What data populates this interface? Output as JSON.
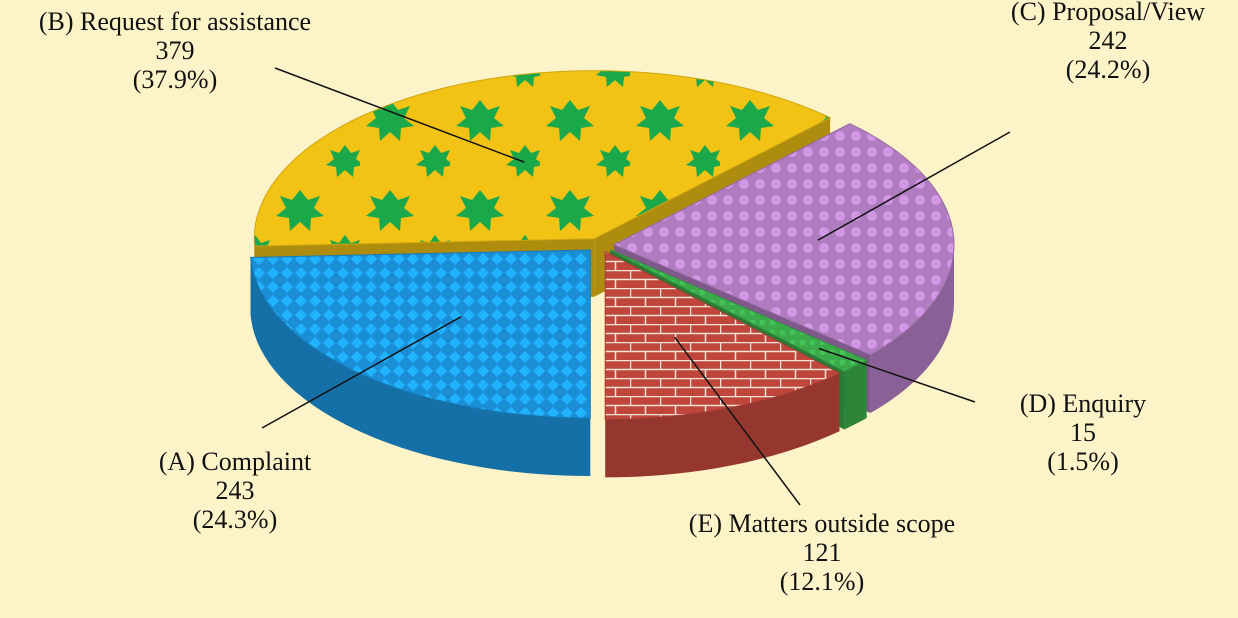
{
  "chart_data": {
    "type": "pie3d",
    "categories": [
      "(A) Complaint",
      "(B) Request for assistance",
      "(C) Proposal/View",
      "(D) Enquiry",
      "(E) Matters outside scope"
    ],
    "values": [
      243,
      379,
      242,
      15,
      121
    ],
    "percentages": [
      24.3,
      37.9,
      24.2,
      1.5,
      12.1
    ],
    "percentage_labels": [
      "(24.3%)",
      "(37.9%)",
      "(24.2%)",
      "(1.5%)",
      "(12.1%)"
    ],
    "colors": [
      "#1a8fd6",
      "#f2c314",
      "#b07cc0",
      "#3aaa4a",
      "#c0463c"
    ]
  }
}
